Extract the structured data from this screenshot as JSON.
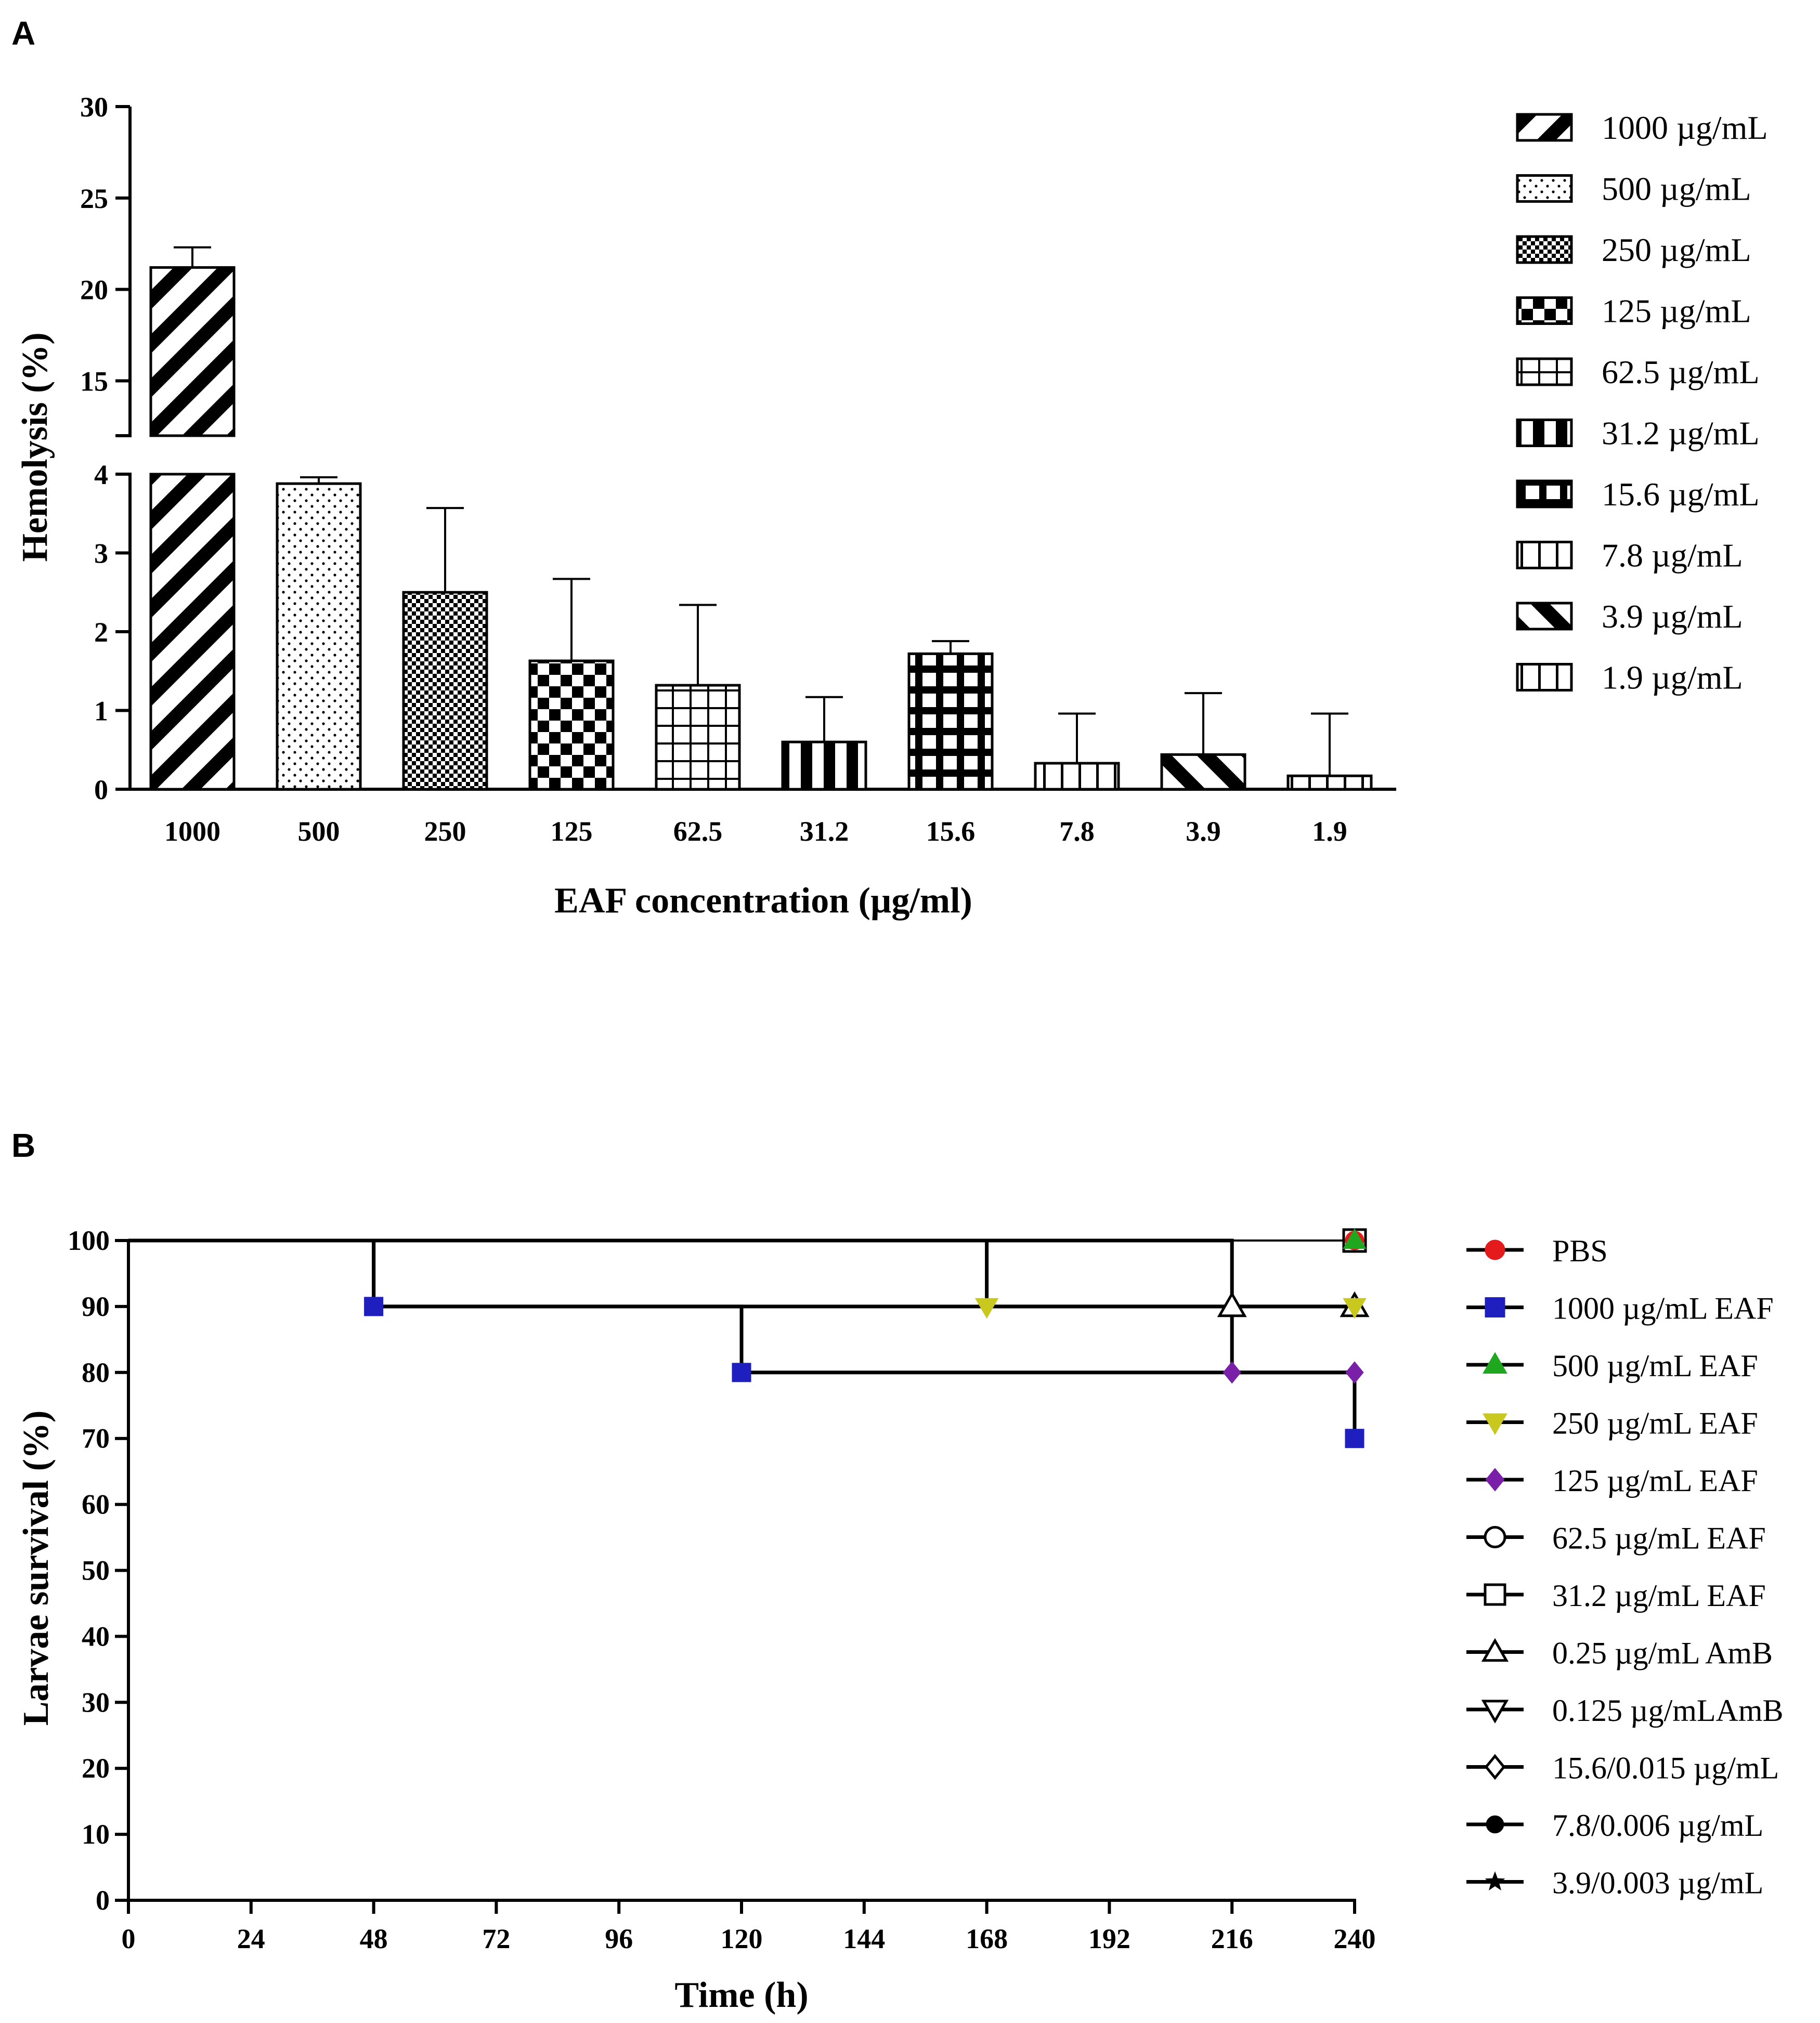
{
  "chart_data": [
    {
      "panel": "A",
      "type": "bar",
      "xlabel": "EAF concentration (µg/ml)",
      "ylabel": "Hemolysis (%)",
      "axis_break": {
        "lower_range": [
          0,
          4
        ],
        "upper_range": [
          12,
          30
        ]
      },
      "yticks_lower": [
        "0",
        "1",
        "2",
        "3",
        "4"
      ],
      "yticks_upper": [
        "15",
        "20",
        "25",
        "30"
      ],
      "categories": [
        "1000",
        "500",
        "250",
        "125",
        "62.5",
        "31.2",
        "15.6",
        "7.8",
        "3.9",
        "1.9"
      ],
      "values": [
        21.2,
        3.88,
        2.5,
        1.63,
        1.32,
        0.6,
        1.72,
        0.33,
        0.44,
        0.17
      ],
      "errors": [
        1.1,
        0.08,
        1.07,
        1.04,
        1.02,
        0.57,
        0.16,
        0.63,
        0.78,
        0.79
      ],
      "legend": [
        "1000 µg/mL",
        "500 µg/mL",
        "250 µg/mL",
        "125 µg/mL",
        "62.5 µg/mL",
        "31.2 µg/mL",
        "15.6 µg/mL",
        "7.8 µg/mL",
        "3.9 µg/mL",
        "1.9 µg/mL"
      ],
      "patterns": [
        "diag-right",
        "dots",
        "fine-check",
        "checker",
        "grid",
        "thick-vertical",
        "bold-grid",
        "vertical",
        "diag-left",
        "vertical"
      ]
    },
    {
      "panel": "B",
      "type": "line",
      "subtype": "kaplan-meier step survival",
      "xlabel": "Time (h)",
      "ylabel": "Larvae survival (%)",
      "xlim": [
        0,
        240
      ],
      "ylim": [
        0,
        100
      ],
      "xticks": [
        "0",
        "24",
        "48",
        "72",
        "96",
        "120",
        "144",
        "168",
        "192",
        "216",
        "240"
      ],
      "yticks": [
        "0",
        "10",
        "20",
        "30",
        "40",
        "50",
        "60",
        "70",
        "80",
        "90",
        "100"
      ],
      "series": [
        {
          "name": "PBS",
          "steps": [
            [
              0,
              100
            ],
            [
              240,
              100
            ]
          ],
          "markers": [
            [
              240,
              100
            ]
          ],
          "marker": "circle-filled",
          "color": "#e41a1c"
        },
        {
          "name": "1000 µg/mL EAF",
          "steps": [
            [
              0,
              100
            ],
            [
              48,
              90
            ],
            [
              120,
              80
            ],
            [
              240,
              70
            ]
          ],
          "markers": [
            [
              48,
              90
            ],
            [
              120,
              80
            ],
            [
              240,
              70
            ]
          ],
          "marker": "square-filled",
          "color": "#1f1fbf"
        },
        {
          "name": "500 µg/mL EAF",
          "steps": [
            [
              0,
              100
            ],
            [
              240,
              100
            ]
          ],
          "markers": [
            [
              240,
              100
            ]
          ],
          "marker": "triangle-up-filled",
          "color": "#1fa81f"
        },
        {
          "name": "250 µg/mL EAF",
          "steps": [
            [
              0,
              100
            ],
            [
              168,
              90
            ],
            [
              240,
              90
            ]
          ],
          "markers": [
            [
              168,
              90
            ],
            [
              240,
              90
            ]
          ],
          "marker": "triangle-down-filled",
          "color": "#c8c81e"
        },
        {
          "name": "125 µg/mL EAF",
          "steps": [
            [
              0,
              100
            ],
            [
              48,
              90
            ],
            [
              216,
              80
            ],
            [
              240,
              80
            ]
          ],
          "markers": [
            [
              216,
              80
            ],
            [
              240,
              80
            ]
          ],
          "marker": "diamond-filled",
          "color": "#7a1fa8"
        },
        {
          "name": "62.5 µg/mL EAF",
          "steps": [
            [
              0,
              100
            ],
            [
              240,
              100
            ]
          ],
          "markers": [
            [
              240,
              100
            ]
          ],
          "marker": "circle-open",
          "color": "#000000"
        },
        {
          "name": "31.2 µg/mL EAF",
          "steps": [
            [
              0,
              100
            ],
            [
              240,
              100
            ]
          ],
          "markers": [
            [
              240,
              100
            ]
          ],
          "marker": "square-open",
          "color": "#000000"
        },
        {
          "name": "0.25 µg/mL AmB",
          "steps": [
            [
              0,
              100
            ],
            [
              216,
              90
            ],
            [
              240,
              90
            ]
          ],
          "markers": [
            [
              216,
              90
            ],
            [
              240,
              90
            ]
          ],
          "marker": "triangle-up-open",
          "color": "#000000"
        },
        {
          "name": "0.125 µg/mLAmB",
          "steps": [
            [
              0,
              100
            ],
            [
              240,
              100
            ]
          ],
          "markers": [],
          "marker": "triangle-down-open",
          "color": "#000000"
        },
        {
          "name": "15.6/0.015 µg/mL",
          "steps": [
            [
              0,
              100
            ],
            [
              240,
              100
            ]
          ],
          "markers": [],
          "marker": "diamond-open",
          "color": "#000000"
        },
        {
          "name": "7.8/0.006 µg/mL",
          "steps": [
            [
              0,
              100
            ],
            [
              240,
              100
            ]
          ],
          "markers": [],
          "marker": "hexagon-filled",
          "color": "#000000"
        },
        {
          "name": "3.9/0.003 µg/mL",
          "steps": [
            [
              0,
              100
            ],
            [
              240,
              100
            ]
          ],
          "markers": [],
          "marker": "star-filled",
          "color": "#000000"
        }
      ]
    }
  ],
  "labels": {
    "panel_a": "A",
    "panel_b": "B"
  }
}
